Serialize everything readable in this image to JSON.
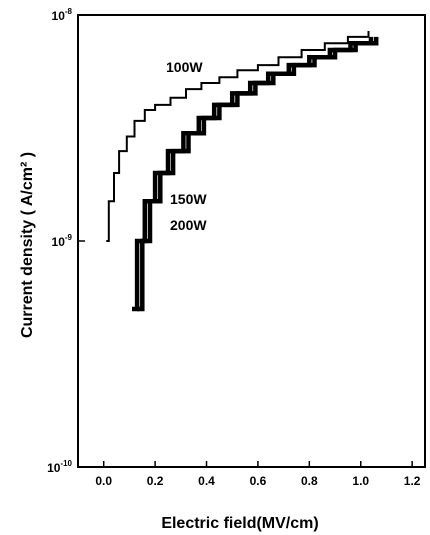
{
  "chart_data": {
    "type": "line",
    "xlabel": "Electric field(MV/cm)",
    "ylabel": "Current density ( A/cm² )",
    "y_scale": "log",
    "xlim": [
      -0.1,
      1.25
    ],
    "ylim_exponents": [
      -10,
      -8
    ],
    "x_ticks": [
      "0.0",
      "0.2",
      "0.4",
      "0.6",
      "0.8",
      "1.0",
      "1.2"
    ],
    "y_ticks": [
      {
        "base": "10",
        "exp": "-8"
      },
      {
        "base": "10",
        "exp": "-9"
      },
      {
        "base": "10",
        "exp": "-10"
      }
    ],
    "grid": false,
    "series": [
      {
        "name": "100W",
        "x": [
          0.01,
          0.02,
          0.04,
          0.06,
          0.09,
          0.12,
          0.16,
          0.2,
          0.26,
          0.32,
          0.38,
          0.45,
          0.52,
          0.6,
          0.68,
          0.77,
          0.86,
          0.95,
          1.03
        ],
        "y": [
          1e-09,
          1.5e-09,
          2e-09,
          2.5e-09,
          2.9e-09,
          3.4e-09,
          3.8e-09,
          4e-09,
          4.3e-09,
          4.7e-09,
          5e-09,
          5.3e-09,
          5.7e-09,
          6e-09,
          6.5e-09,
          7e-09,
          7.5e-09,
          8e-09,
          8.5e-09
        ]
      },
      {
        "name": "150W",
        "x": [
          0.11,
          0.13,
          0.16,
          0.2,
          0.25,
          0.31,
          0.37,
          0.43,
          0.5,
          0.57,
          0.64,
          0.72,
          0.8,
          0.88,
          0.96,
          1.04
        ],
        "y": [
          5e-10,
          1e-09,
          1.5e-09,
          2e-09,
          2.5e-09,
          3e-09,
          3.5e-09,
          4e-09,
          4.5e-09,
          5e-09,
          5.5e-09,
          6e-09,
          6.5e-09,
          7e-09,
          7.5e-09,
          8e-09
        ]
      },
      {
        "name": "200W",
        "x": [
          0.13,
          0.15,
          0.18,
          0.22,
          0.27,
          0.33,
          0.39,
          0.45,
          0.52,
          0.59,
          0.66,
          0.74,
          0.82,
          0.9,
          0.98,
          1.06
        ],
        "y": [
          5e-10,
          1e-09,
          1.5e-09,
          2e-09,
          2.5e-09,
          3e-09,
          3.5e-09,
          4e-09,
          4.5e-09,
          5e-09,
          5.5e-09,
          6e-09,
          6.5e-09,
          7e-09,
          7.5e-09,
          8e-09
        ]
      }
    ]
  }
}
